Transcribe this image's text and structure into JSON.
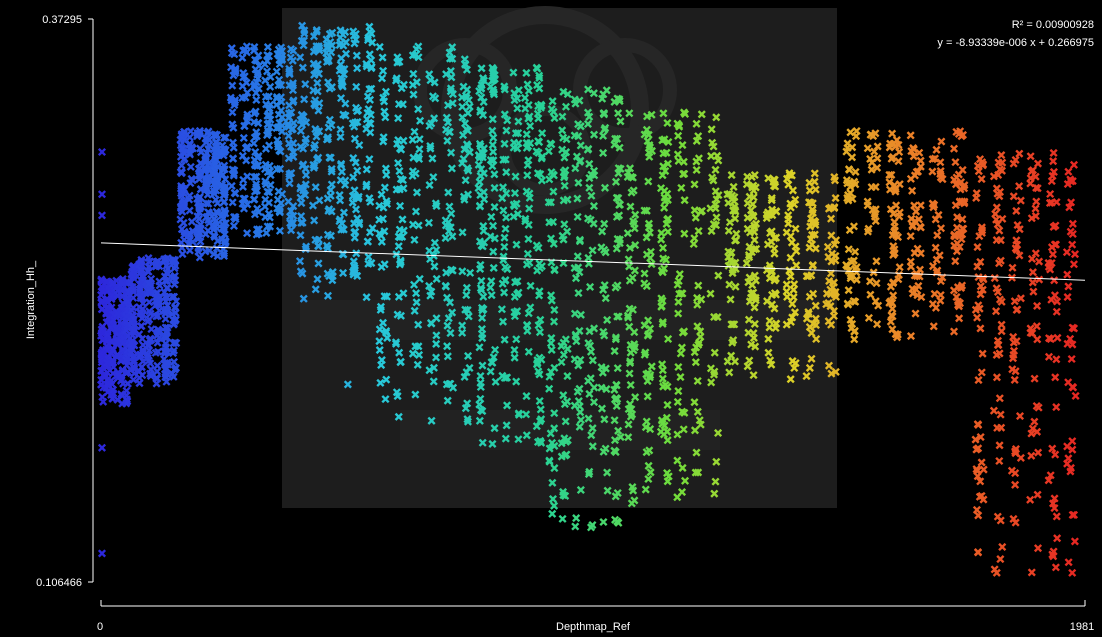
{
  "chart_data": {
    "type": "scatter",
    "xlabel": "Depthmap_Ref",
    "ylabel": "Integration_Hh_",
    "xlim": [
      0,
      1981
    ],
    "ylim": [
      0.106466,
      0.37295
    ],
    "x_ticks": [
      "0",
      "1981"
    ],
    "y_ticks": [
      "0.106466",
      "0.37295"
    ],
    "grid": false,
    "marker": "x",
    "color_scale": "x (blue → cyan → green → yellow → orange → red)",
    "regression": {
      "r2_label": "R² = 0.00900928",
      "equation_label": "y = -8.93339e-006 x + 0.266975",
      "slope": -8.93339e-06,
      "intercept": 0.266975
    },
    "clusters": [
      {
        "x": [
          0,
          60
        ],
        "y": [
          0.19,
          0.25
        ]
      },
      {
        "x": [
          60,
          160
        ],
        "y": [
          0.2,
          0.26
        ]
      },
      {
        "x": [
          160,
          260
        ],
        "y": [
          0.26,
          0.32
        ]
      },
      {
        "x": [
          260,
          400
        ],
        "y": [
          0.27,
          0.36
        ]
      },
      {
        "x": [
          400,
          560
        ],
        "y": [
          0.24,
          0.37
        ]
      },
      {
        "x": [
          560,
          760
        ],
        "y": [
          0.18,
          0.36
        ]
      },
      {
        "x": [
          760,
          900
        ],
        "y": [
          0.17,
          0.35
        ]
      },
      {
        "x": [
          900,
          1060
        ],
        "y": [
          0.13,
          0.34
        ]
      },
      {
        "x": [
          1060,
          1260
        ],
        "y": [
          0.14,
          0.33
        ]
      },
      {
        "x": [
          1260,
          1500
        ],
        "y": [
          0.2,
          0.3
        ]
      },
      {
        "x": [
          1500,
          1760
        ],
        "y": [
          0.22,
          0.32
        ]
      },
      {
        "x": [
          1760,
          1981
        ],
        "y": [
          0.11,
          0.31
        ]
      }
    ],
    "outliers": [
      {
        "x": 2,
        "y": 0.31
      },
      {
        "x": 2,
        "y": 0.29
      },
      {
        "x": 2,
        "y": 0.28
      },
      {
        "x": 2,
        "y": 0.12
      },
      {
        "x": 2,
        "y": 0.17
      },
      {
        "x": 497,
        "y": 0.2
      }
    ]
  }
}
